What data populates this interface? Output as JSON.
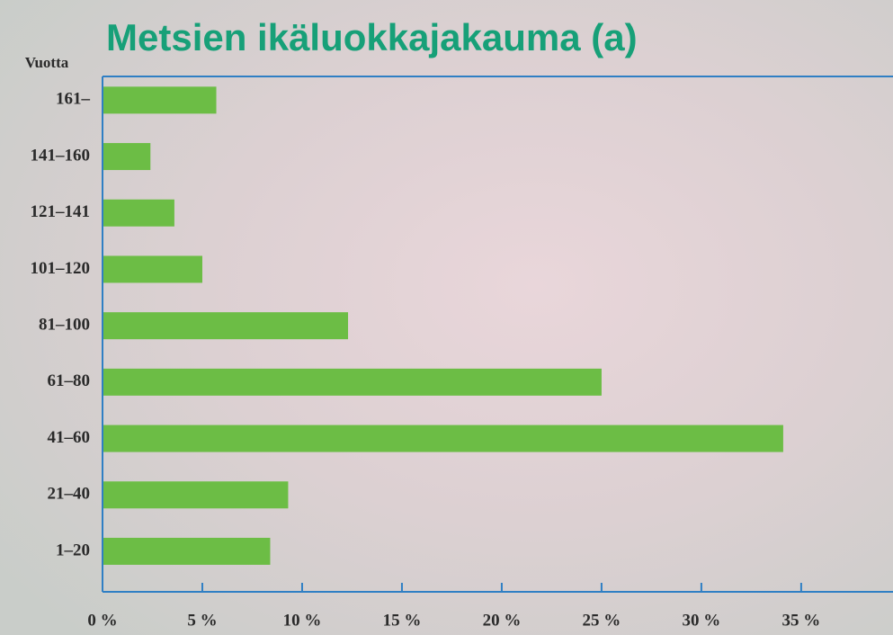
{
  "chart_data": {
    "type": "bar",
    "orientation": "horizontal",
    "title": "Metsien ikäluokkajakauma (a)",
    "y_label": "Vuotta",
    "categories": [
      "161–",
      "141–160",
      "121–141",
      "101–120",
      "81–100",
      "61–80",
      "41–60",
      "21–40",
      "1–20"
    ],
    "values": [
      5.7,
      2.4,
      3.6,
      5.0,
      12.3,
      25.0,
      34.1,
      9.3,
      8.4
    ],
    "color": "#6cbd45",
    "xlim": [
      0,
      39.6
    ],
    "xticks": [
      {
        "value": 0,
        "label": "0 %"
      },
      {
        "value": 5,
        "label": "5 %"
      },
      {
        "value": 10,
        "label": "10 %"
      },
      {
        "value": 15,
        "label": "15 %"
      },
      {
        "value": 20,
        "label": "20 %"
      },
      {
        "value": 25,
        "label": "25 %"
      },
      {
        "value": 30,
        "label": "30 %"
      },
      {
        "value": 35,
        "label": "35 %"
      }
    ],
    "axis_color": "#2f7fc4"
  }
}
